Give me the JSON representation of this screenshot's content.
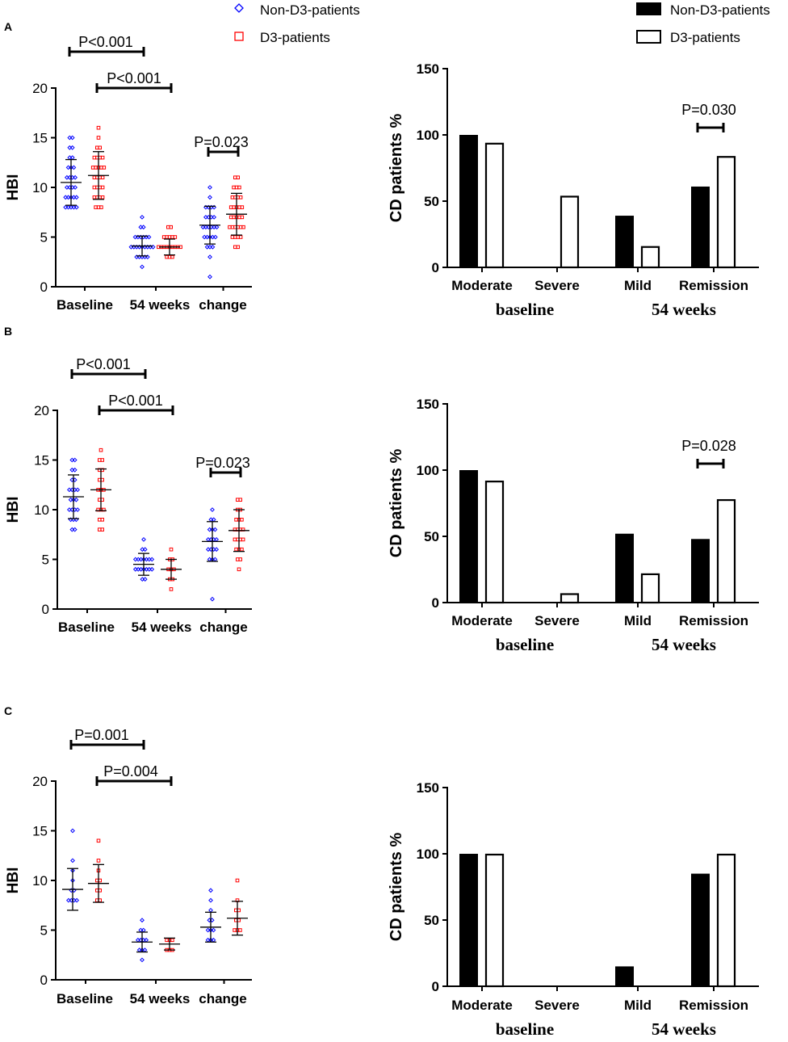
{
  "legend_scatter": {
    "non_d3": {
      "label": "Non-D3-patients",
      "color": "#0000ff",
      "marker": "diamond"
    },
    "d3": {
      "label": "D3-patients",
      "color": "#ff0000",
      "marker": "square-open"
    }
  },
  "legend_bar": {
    "non_d3": {
      "label": "Non-D3-patients",
      "fill": "#000000"
    },
    "d3": {
      "label": "D3-patients",
      "fill": "#ffffff"
    }
  },
  "panels": [
    {
      "label": "A"
    },
    {
      "label": "B"
    },
    {
      "label": "C"
    }
  ],
  "chart_data": [
    {
      "panel": "A",
      "type": "scatter",
      "title": "",
      "xlabel": "",
      "ylabel": "HBI",
      "ylim": [
        0,
        20
      ],
      "yticks": [
        0,
        5,
        10,
        15,
        20
      ],
      "categories": [
        "Baseline",
        "54 weeks",
        "change"
      ],
      "series": [
        {
          "name": "Non-D3-patients",
          "color": "#0000ff",
          "mean": [
            10.5,
            4.1,
            6.2
          ],
          "sd": [
            2.3,
            1.0,
            1.9
          ],
          "points": [
            [
              8,
              8,
              8,
              8,
              8,
              9,
              9,
              9,
              9,
              9,
              10,
              10,
              10,
              10,
              11,
              11,
              11,
              11,
              12,
              12,
              12,
              13,
              13,
              14,
              14,
              15,
              15
            ],
            [
              2,
              3,
              3,
              3,
              3,
              3,
              4,
              4,
              4,
              4,
              4,
              4,
              4,
              4,
              4,
              5,
              5,
              5,
              5,
              5,
              5,
              6,
              6,
              7
            ],
            [
              1,
              3,
              4,
              4,
              4,
              5,
              5,
              5,
              5,
              5,
              6,
              6,
              6,
              6,
              6,
              6,
              7,
              7,
              7,
              7,
              8,
              8,
              8,
              8,
              9,
              10
            ]
          ]
        },
        {
          "name": "D3-patients",
          "color": "#ff0000",
          "mean": [
            11.2,
            4.0,
            7.3
          ],
          "sd": [
            2.4,
            0.8,
            2.1
          ],
          "points": [
            [
              8,
              8,
              8,
              9,
              9,
              9,
              9,
              10,
              10,
              10,
              10,
              11,
              11,
              11,
              11,
              12,
              12,
              12,
              12,
              12,
              13,
              13,
              13,
              13,
              14,
              14,
              15,
              16
            ],
            [
              3,
              3,
              3,
              4,
              4,
              4,
              4,
              4,
              4,
              4,
              4,
              4,
              5,
              5,
              5,
              5,
              5,
              6,
              6
            ],
            [
              4,
              4,
              5,
              5,
              5,
              5,
              6,
              6,
              6,
              6,
              6,
              6,
              7,
              7,
              7,
              7,
              7,
              8,
              8,
              8,
              8,
              8,
              9,
              9,
              9,
              9,
              10,
              10,
              10,
              11,
              11
            ]
          ]
        }
      ],
      "comparisons": [
        {
          "text": "P<0.001",
          "groups": [
            "Baseline/Non-D3",
            "54 weeks/Non-D3"
          ]
        },
        {
          "text": "P<0.001",
          "groups": [
            "Baseline/D3",
            "54 weeks/D3"
          ]
        },
        {
          "text": "P=0.023",
          "groups": [
            "change/Non-D3",
            "change/D3"
          ]
        }
      ]
    },
    {
      "panel": "A",
      "type": "bar",
      "ylabel": "CD patients %",
      "ylim": [
        0,
        150
      ],
      "yticks": [
        0,
        50,
        100,
        150
      ],
      "categories": [
        "Moderate",
        "Severe",
        "Mild",
        "Remission"
      ],
      "groups": [
        {
          "label": "baseline",
          "span": [
            "Moderate",
            "Severe"
          ]
        },
        {
          "label": "54 weeks",
          "span": [
            "Mild",
            "Remission"
          ]
        }
      ],
      "series": [
        {
          "name": "Non-D3-patients",
          "values": [
            100,
            0,
            39,
            61
          ]
        },
        {
          "name": "D3-patients",
          "values": [
            94,
            54,
            16,
            84
          ]
        }
      ],
      "annotation": {
        "text": "P=0.030",
        "category": "Remission"
      }
    },
    {
      "panel": "B",
      "type": "scatter",
      "title": "",
      "xlabel": "",
      "ylabel": "HBI",
      "ylim": [
        0,
        20
      ],
      "yticks": [
        0,
        5,
        10,
        15,
        20
      ],
      "categories": [
        "Baseline",
        "54 weeks",
        "change"
      ],
      "series": [
        {
          "name": "Non-D3-patients",
          "color": "#0000ff",
          "mean": [
            11.3,
            4.5,
            6.8
          ],
          "sd": [
            2.2,
            1.1,
            2.0
          ],
          "points": [
            [
              8,
              8,
              9,
              9,
              9,
              10,
              10,
              10,
              10,
              11,
              11,
              11,
              12,
              12,
              12,
              12,
              13,
              13,
              14,
              14,
              15,
              15
            ],
            [
              3,
              3,
              4,
              4,
              4,
              4,
              4,
              4,
              4,
              5,
              5,
              5,
              5,
              5,
              5,
              5,
              6,
              6,
              7
            ],
            [
              1,
              5,
              5,
              5,
              6,
              6,
              6,
              6,
              7,
              7,
              7,
              7,
              8,
              8,
              8,
              9,
              9,
              10
            ]
          ]
        },
        {
          "name": "D3-patients",
          "color": "#ff0000",
          "mean": [
            12.0,
            4.0,
            7.9
          ],
          "sd": [
            2.1,
            1.0,
            2.1
          ],
          "points": [
            [
              8,
              8,
              9,
              9,
              10,
              10,
              10,
              11,
              11,
              12,
              12,
              12,
              13,
              13,
              14,
              14,
              15,
              15,
              16
            ],
            [
              2,
              3,
              3,
              4,
              4,
              4,
              5,
              5,
              6
            ],
            [
              4,
              5,
              5,
              6,
              6,
              6,
              7,
              7,
              7,
              7,
              8,
              8,
              8,
              8,
              9,
              9,
              9,
              10,
              10,
              11,
              11
            ]
          ]
        }
      ],
      "comparisons": [
        {
          "text": "P<0.001",
          "groups": [
            "Baseline/Non-D3",
            "54 weeks/Non-D3"
          ]
        },
        {
          "text": "P<0.001",
          "groups": [
            "Baseline/D3",
            "54 weeks/D3"
          ]
        },
        {
          "text": "P=0.023",
          "groups": [
            "change/Non-D3",
            "change/D3"
          ]
        }
      ]
    },
    {
      "panel": "B",
      "type": "bar",
      "ylabel": "CD patients %",
      "ylim": [
        0,
        150
      ],
      "yticks": [
        0,
        50,
        100,
        150
      ],
      "categories": [
        "Moderate",
        "Severe",
        "Mild",
        "Remission"
      ],
      "groups": [
        {
          "label": "baseline",
          "span": [
            "Moderate",
            "Severe"
          ]
        },
        {
          "label": "54 weeks",
          "span": [
            "Mild",
            "Remission"
          ]
        }
      ],
      "series": [
        {
          "name": "Non-D3-patients",
          "values": [
            100,
            0,
            52,
            48
          ]
        },
        {
          "name": "D3-patients",
          "values": [
            92,
            7,
            22,
            78
          ]
        }
      ],
      "annotation": {
        "text": "P=0.028",
        "category": "Remission"
      }
    },
    {
      "panel": "C",
      "type": "scatter",
      "title": "",
      "xlabel": "",
      "ylabel": "HBI",
      "ylim": [
        0,
        20
      ],
      "yticks": [
        0,
        5,
        10,
        15,
        20
      ],
      "categories": [
        "Baseline",
        "54 weeks",
        "change"
      ],
      "series": [
        {
          "name": "Non-D3-patients",
          "color": "#0000ff",
          "mean": [
            9.1,
            3.8,
            5.3
          ],
          "sd": [
            2.1,
            1.0,
            1.5
          ],
          "points": [
            [
              8,
              8,
              8,
              8,
              9,
              9,
              10,
              11,
              12,
              15
            ],
            [
              2,
              3,
              3,
              3,
              4,
              4,
              4,
              4,
              5,
              5,
              6
            ],
            [
              4,
              4,
              4,
              5,
              5,
              5,
              6,
              6,
              7,
              8,
              9
            ]
          ]
        },
        {
          "name": "D3-patients",
          "color": "#ff0000",
          "mean": [
            9.7,
            3.6,
            6.2
          ],
          "sd": [
            1.9,
            0.6,
            1.7
          ],
          "points": [
            [
              8,
              8,
              9,
              9,
              10,
              10,
              11,
              12,
              14
            ],
            [
              3,
              3,
              3,
              4,
              4,
              4
            ],
            [
              5,
              5,
              5,
              6,
              6,
              7,
              7,
              8,
              10
            ]
          ]
        }
      ],
      "comparisons": [
        {
          "text": "P=0.001",
          "groups": [
            "Baseline/Non-D3",
            "54 weeks/Non-D3"
          ]
        },
        {
          "text": "P=0.004",
          "groups": [
            "Baseline/D3",
            "54 weeks/D3"
          ]
        }
      ]
    },
    {
      "panel": "C",
      "type": "bar",
      "ylabel": "CD patients %",
      "ylim": [
        0,
        150
      ],
      "yticks": [
        0,
        50,
        100,
        150
      ],
      "categories": [
        "Moderate",
        "Severe",
        "Mild",
        "Remission"
      ],
      "groups": [
        {
          "label": "baseline",
          "span": [
            "Moderate",
            "Severe"
          ]
        },
        {
          "label": "54 weeks",
          "span": [
            "Mild",
            "Remission"
          ]
        }
      ],
      "series": [
        {
          "name": "Non-D3-patients",
          "values": [
            100,
            0,
            15,
            85
          ]
        },
        {
          "name": "D3-patients",
          "values": [
            100,
            0,
            0,
            100
          ]
        }
      ],
      "annotation": null
    }
  ]
}
